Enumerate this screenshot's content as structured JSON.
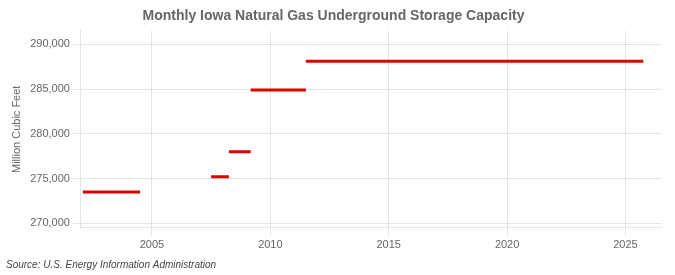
{
  "chart_data": {
    "type": "line",
    "title": "Monthly Iowa Natural Gas Underground Storage Capacity",
    "ylabel": "Million Cubic Feet",
    "annotations": [
      "Source: U.S. Energy Information Administration"
    ],
    "color": "#dd0000",
    "segments": [
      {
        "x_start": 2002.08,
        "x_end": 2004.5,
        "y": 273500
      },
      {
        "x_start": 2007.5,
        "x_end": 2008.25,
        "y": 275200
      },
      {
        "x_start": 2008.25,
        "x_end": 2009.17,
        "y": 278000
      },
      {
        "x_start": 2009.17,
        "x_end": 2011.5,
        "y": 284900
      },
      {
        "x_start": 2011.5,
        "x_end": 2025.75,
        "y": 288100
      }
    ],
    "xlim": [
      2002.0,
      2026.5
    ],
    "ylim": [
      269500,
      291500
    ],
    "xticks": [
      2005,
      2010,
      2015,
      2020,
      2025
    ],
    "yticks": [
      {
        "value": 270000,
        "label": "270,000"
      },
      {
        "value": 275000,
        "label": "275,000"
      },
      {
        "value": 280000,
        "label": "280,000"
      },
      {
        "value": 285000,
        "label": "285,000"
      },
      {
        "value": 290000,
        "label": "290,000"
      }
    ],
    "grid": true
  }
}
